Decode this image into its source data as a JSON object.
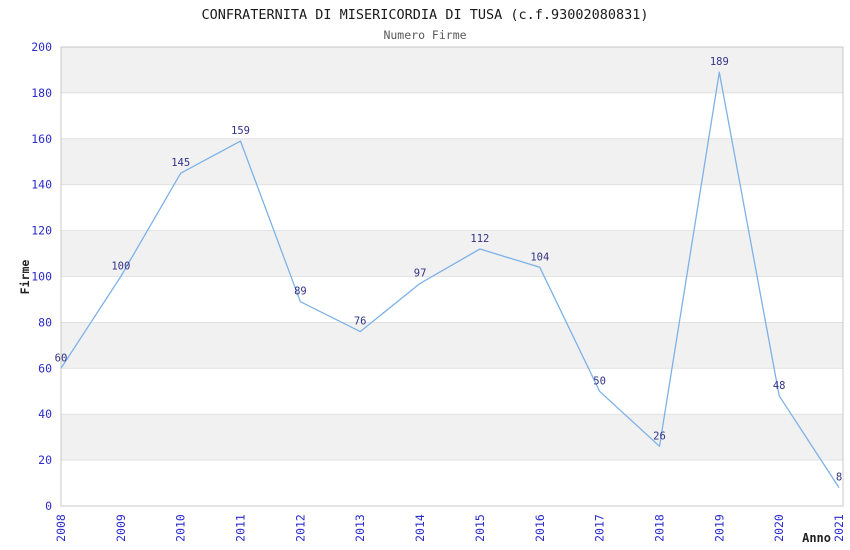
{
  "page": {
    "title": "CONFRATERNITA DI MISERICORDIA DI TUSA (c.f.93002080831)",
    "subtitle": "Numero Firme"
  },
  "chart_data": {
    "type": "line",
    "title": "CONFRATERNITA DI MISERICORDIA DI TUSA (c.f.93002080831)",
    "subtitle": "Numero Firme",
    "xlabel": "Anno",
    "ylabel": "Firme",
    "categories": [
      "2008",
      "2009",
      "2010",
      "2011",
      "2012",
      "2013",
      "2014",
      "2015",
      "2016",
      "2017",
      "2018",
      "2019",
      "2020",
      "2021"
    ],
    "values": [
      60,
      100,
      145,
      159,
      89,
      76,
      97,
      112,
      104,
      50,
      26,
      189,
      48,
      8
    ],
    "ylim": [
      0,
      200
    ],
    "ytick_step": 20,
    "ytick_labels": [
      "0",
      "20",
      "40",
      "60",
      "80",
      "100",
      "120",
      "140",
      "160",
      "180",
      "200"
    ],
    "grid": true,
    "legend_position": "none",
    "show_data_labels": true,
    "colors": {
      "line": "#7db2e8",
      "tick_label": "#2b2bcc",
      "data_label": "#333388",
      "band_gray": "#f1f1f1",
      "band_white": "#ffffff",
      "gridline": "#dcdcdc",
      "plot_border": "#c8c8c8",
      "title": "#1a1a1a",
      "subtitle": "#5a5a5a",
      "axis_label": "#222222"
    }
  }
}
